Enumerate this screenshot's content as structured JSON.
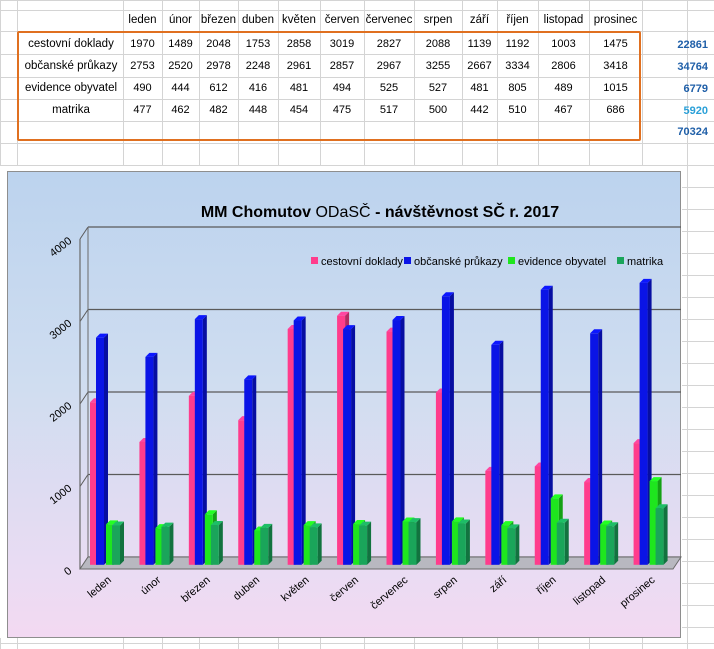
{
  "table": {
    "months": [
      "leden",
      "únor",
      "březen",
      "duben",
      "květen",
      "červen",
      "červenec",
      "srpen",
      "září",
      "říjen",
      "listopad",
      "prosinec"
    ],
    "rows": [
      {
        "label": "cestovní doklady",
        "values": [
          1970,
          1489,
          2048,
          1753,
          2858,
          3019,
          2827,
          2088,
          1139,
          1192,
          1003,
          1475
        ],
        "total": "22861"
      },
      {
        "label": "občanské průkazy",
        "values": [
          2753,
          2520,
          2978,
          2248,
          2961,
          2857,
          2967,
          3255,
          2667,
          3334,
          2806,
          3418
        ],
        "total": "34764"
      },
      {
        "label": "evidence obyvatel",
        "values": [
          490,
          444,
          612,
          416,
          481,
          494,
          525,
          527,
          481,
          805,
          489,
          1015
        ],
        "total": "6779"
      },
      {
        "label": "matrika",
        "values": [
          477,
          462,
          482,
          448,
          454,
          475,
          517,
          500,
          442,
          510,
          467,
          686
        ],
        "total": "5920"
      }
    ],
    "grand_total": "70324",
    "colors": {
      "frame": "#e07020",
      "totals": "#1f5fa8",
      "matrika_total": "#2aa0d8"
    }
  },
  "chart_data": {
    "type": "bar",
    "title_bold_1": "MM Chomutov",
    "title_normal": "ODaSČ",
    "title_bold_2": "- návštěvnost SČ r. 2017",
    "categories": [
      "leden",
      "únor",
      "březen",
      "duben",
      "květen",
      "červen",
      "červenec",
      "srpen",
      "září",
      "říjen",
      "listopad",
      "prosinec"
    ],
    "series": [
      {
        "name": "cestovní doklady",
        "color": "#ff3c8c",
        "values": [
          1970,
          1489,
          2048,
          1753,
          2858,
          3019,
          2827,
          2088,
          1139,
          1192,
          1003,
          1475
        ]
      },
      {
        "name": "občanské průkazy",
        "color": "#0a14e6",
        "values": [
          2753,
          2520,
          2978,
          2248,
          2961,
          2857,
          2967,
          3255,
          2667,
          3334,
          2806,
          3418
        ]
      },
      {
        "name": "evidence obyvatel",
        "color": "#1ee61e",
        "values": [
          490,
          444,
          612,
          416,
          481,
          494,
          525,
          527,
          481,
          805,
          489,
          1015
        ]
      },
      {
        "name": "matrika",
        "color": "#1aa55a",
        "values": [
          477,
          462,
          482,
          448,
          454,
          475,
          517,
          500,
          442,
          510,
          467,
          686
        ]
      }
    ],
    "y_ticks": [
      "0",
      "1000",
      "2000",
      "3000",
      "4000"
    ],
    "ylim": [
      0,
      4000
    ],
    "grid": true,
    "legend": "top-right"
  }
}
